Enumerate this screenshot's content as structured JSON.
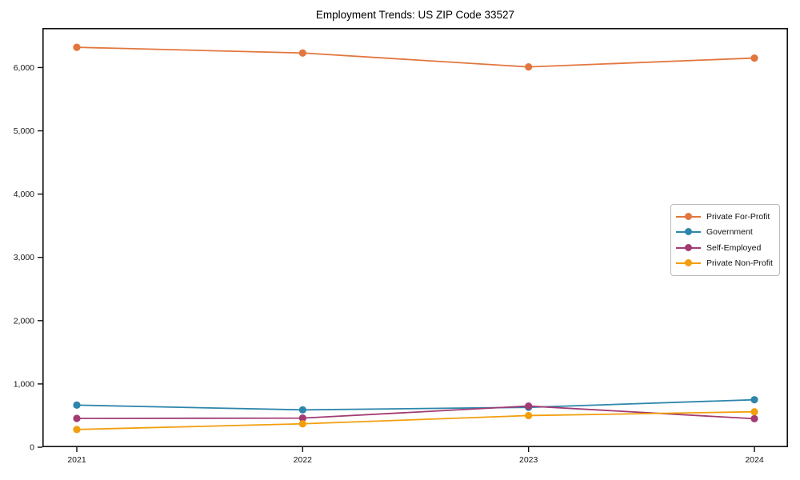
{
  "chart_data": {
    "type": "line",
    "title": "Employment Trends: US ZIP Code 33527",
    "categories": [
      "2021",
      "2022",
      "2023",
      "2024"
    ],
    "series": [
      {
        "name": "Private For-Profit",
        "color": "#E2763E",
        "values": [
          6320,
          6230,
          6010,
          6150
        ]
      },
      {
        "name": "Government",
        "color": "#2E86AB",
        "values": [
          665,
          590,
          630,
          750
        ]
      },
      {
        "name": "Self-Employed",
        "color": "#A23B72",
        "values": [
          455,
          460,
          650,
          450
        ]
      },
      {
        "name": "Private Non-Profit",
        "color": "#F29E0D",
        "values": [
          280,
          370,
          500,
          560
        ]
      }
    ],
    "xlabel": "",
    "ylabel": "",
    "ylim": [
      0,
      6625
    ],
    "yticks": [
      0,
      1000,
      2000,
      3000,
      4000,
      5000,
      6000
    ],
    "ytick_labels": [
      "0",
      "1,000",
      "2,000",
      "3,000",
      "4,000",
      "5,000",
      "6,000"
    ],
    "grid": false,
    "legend_position": "center-right",
    "marker": "circle",
    "frame_color": "#0f0f0f"
  }
}
